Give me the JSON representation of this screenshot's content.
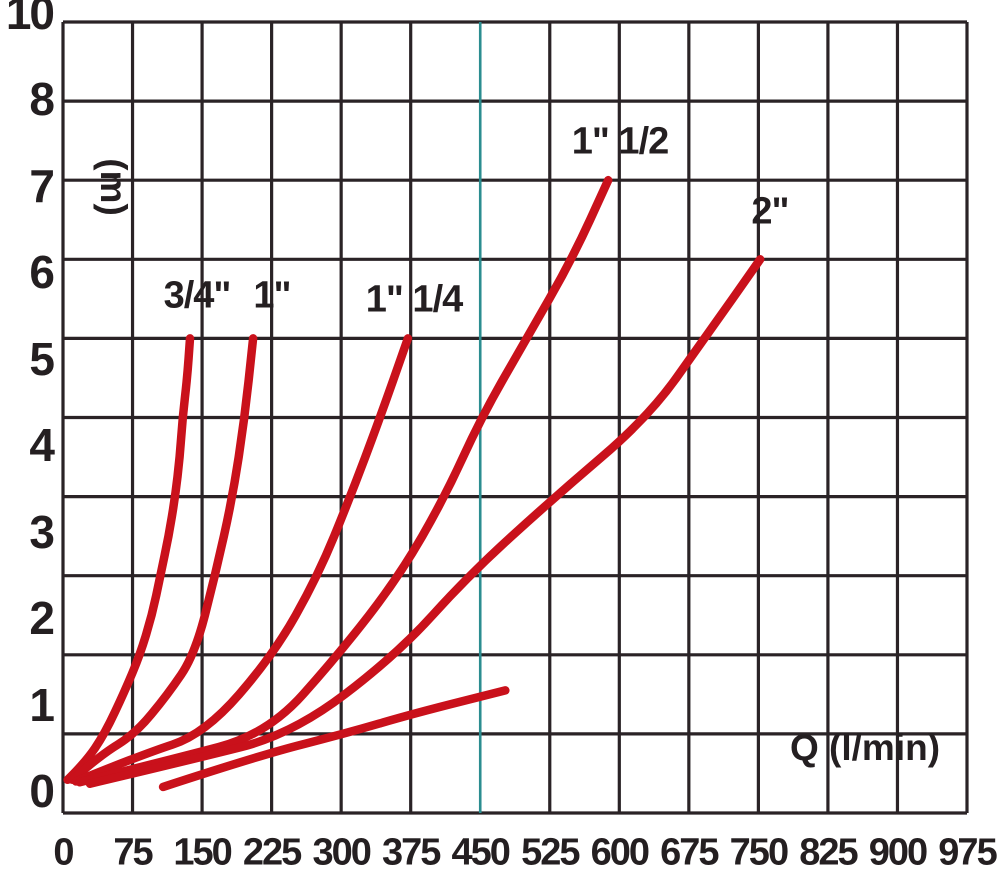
{
  "chart_data": {
    "type": "line",
    "title": "",
    "x_axis_label": "Q (l/min)",
    "y_axis_label": "(m)",
    "x_ticks": [
      0,
      75,
      150,
      225,
      300,
      375,
      450,
      525,
      600,
      675,
      750,
      825,
      900,
      975
    ],
    "y_tick_labels": [
      "10",
      "8",
      "7",
      "6",
      "5",
      "4",
      "3",
      "2",
      "1",
      "0"
    ],
    "xlim": [
      0,
      975
    ],
    "ylim": [
      0,
      10
    ],
    "grid": "on",
    "legend_position": "labels-near-curves",
    "notes_layout": "y tick label 9 is skipped; 10 labels are evenly spaced beside 11 gridlines so mid labels sit slightly above their lines; vertical gridline at Q=450 is teal",
    "reference_line_q": 450,
    "series": [
      {
        "key": "three-quarter-inch",
        "label": "3/4\"",
        "label_pos": {
          "x": 197,
          "y": 296
        },
        "points": [
          [
            5,
            0.42
          ],
          [
            24,
            0.64
          ],
          [
            45,
            1
          ],
          [
            67,
            1.55
          ],
          [
            83,
            2
          ],
          [
            96,
            2.5
          ],
          [
            105,
            3
          ],
          [
            114,
            3.5
          ],
          [
            121,
            4
          ],
          [
            126,
            4.5
          ],
          [
            129,
            5
          ],
          [
            134,
            5.5
          ],
          [
            137,
            6
          ]
        ]
      },
      {
        "key": "one-inch",
        "label": "1\"",
        "label_pos": {
          "x": 272,
          "y": 296
        },
        "points": [
          [
            10,
            0.42
          ],
          [
            40,
            0.73
          ],
          [
            78,
            1
          ],
          [
            113,
            1.5
          ],
          [
            142,
            2
          ],
          [
            164,
            3
          ],
          [
            183,
            4
          ],
          [
            196,
            5
          ],
          [
            205,
            6
          ]
        ]
      },
      {
        "key": "one-and-quarter-inch",
        "label": "1\" 1/4",
        "label_pos": {
          "x": 414,
          "y": 300
        },
        "points": [
          [
            14,
            0.4
          ],
          [
            83,
            0.73
          ],
          [
            153,
            1
          ],
          [
            227,
            2
          ],
          [
            275,
            3
          ],
          [
            310,
            4
          ],
          [
            342,
            5
          ],
          [
            372,
            6
          ]
        ]
      },
      {
        "key": "one-and-half-inch",
        "label": "1\" 1/2",
        "label_pos": {
          "x": 620,
          "y": 142
        },
        "points": [
          [
            18,
            0.39
          ],
          [
            115,
            0.67
          ],
          [
            221,
            1
          ],
          [
            297,
            2
          ],
          [
            363,
            3
          ],
          [
            412,
            4
          ],
          [
            451,
            5
          ],
          [
            500,
            6
          ],
          [
            549,
            7
          ],
          [
            588,
            8
          ]
        ]
      },
      {
        "key": "two-inch",
        "label": "2\"",
        "label_pos": {
          "x": 770,
          "y": 212
        },
        "points": [
          [
            29,
            0.37
          ],
          [
            137,
            0.67
          ],
          [
            248,
            1
          ],
          [
            360,
            2
          ],
          [
            437,
            3
          ],
          [
            531,
            4
          ],
          [
            631,
            5
          ],
          [
            692,
            6
          ],
          [
            752,
            7
          ]
        ]
      },
      {
        "key": "two-inch-lower-stroke",
        "label": "",
        "label_pos": null,
        "points": [
          [
            108,
            0.33
          ],
          [
            212,
            0.73
          ],
          [
            303,
            1.0
          ],
          [
            379,
            1.26
          ],
          [
            477,
            1.55
          ]
        ]
      }
    ],
    "colors": {
      "curve": "#c9111b",
      "grid": "#2a2326",
      "text": "#241f21",
      "reference_line": "#2b8d90",
      "background": "#ffffff"
    },
    "layout": {
      "plot_left": 63,
      "plot_right": 967,
      "plot_top": 22,
      "plot_bottom": 813,
      "grid_stroke_width": 3.2,
      "curve_stroke_width": 8.5,
      "reference_stroke_width": 2.6,
      "y_labels_top_center": 15,
      "y_labels_bottom_center": 793,
      "y_labels_right_edge": 53,
      "x_labels_center_y": 853,
      "y_unit_pos": {
        "x": 113,
        "y": 187
      },
      "x_unit_pos": {
        "x": 865,
        "y": 748
      }
    }
  }
}
